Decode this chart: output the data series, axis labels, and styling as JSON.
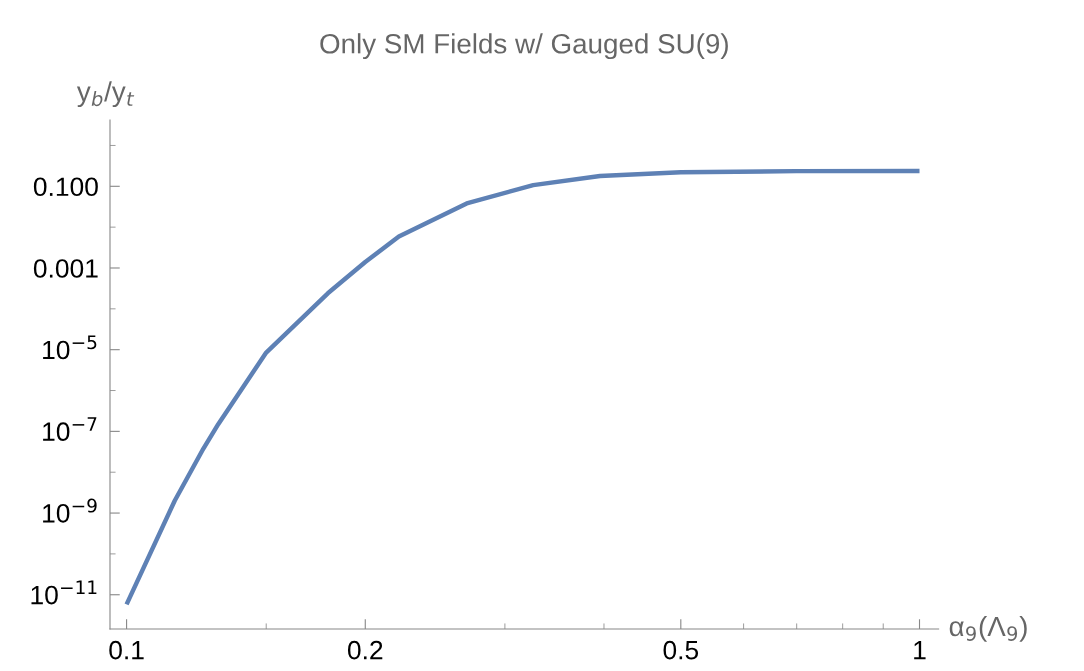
{
  "chart_data": {
    "type": "line",
    "title": "Only SM Fields w/ Gauged SU(9)",
    "xlabel": "α$_{9}$(Λ$_{9}$)",
    "ylabel": "y$_{b}$/y$_{t}$",
    "log": "xy",
    "x": [
      0.1,
      0.115,
      0.125,
      0.1305,
      0.15,
      0.1794,
      0.2,
      0.2205,
      0.2685,
      0.3257,
      0.3954,
      0.5,
      0.7,
      1.0
    ],
    "series": [
      {
        "color": "#5e81b5",
        "values": [
          5.8e-12,
          2e-09,
          3.8e-08,
          1.5e-07,
          8.5e-06,
          0.00024,
          0.0014,
          0.0059,
          0.038,
          0.107,
          0.178,
          0.22,
          0.235,
          0.237
        ]
      }
    ],
    "xlim": [
      0.0953,
      1.057
    ],
    "ylim": [
      1.45e-12,
      4.2
    ],
    "xticks": [
      0.1,
      {
        "value": 0.15,
        "label": null
      },
      0.2,
      {
        "value": 0.3,
        "label": null
      },
      {
        "value": 0.4,
        "label": null
      },
      0.5,
      {
        "value": 0.6,
        "label": null
      },
      {
        "value": 0.7,
        "label": null
      },
      {
        "value": 0.8,
        "label": null
      },
      {
        "value": 0.9,
        "label": null
      },
      1
    ],
    "yticks": [
      {
        "value": 1,
        "label": null
      },
      {
        "value": 0.1,
        "label": "0.100"
      },
      {
        "value": 0.01,
        "label": null
      },
      {
        "value": 0.001,
        "label": "0.001"
      },
      {
        "value": 0.0001,
        "label": null
      },
      {
        "value": 1e-05,
        "label": "10$^{−5}$"
      },
      {
        "value": 1e-06,
        "label": null
      },
      {
        "value": 1e-07,
        "label": "10$^{−7}$"
      },
      {
        "value": 1e-08,
        "label": null
      },
      {
        "value": 1e-09,
        "label": "10$^{−9}$"
      },
      {
        "value": 1e-10,
        "label": null
      },
      {
        "value": 1e-11,
        "label": "10$^{−11}$"
      }
    ],
    "grid": false,
    "legend": false,
    "marker": "none",
    "line_style": "solid"
  }
}
